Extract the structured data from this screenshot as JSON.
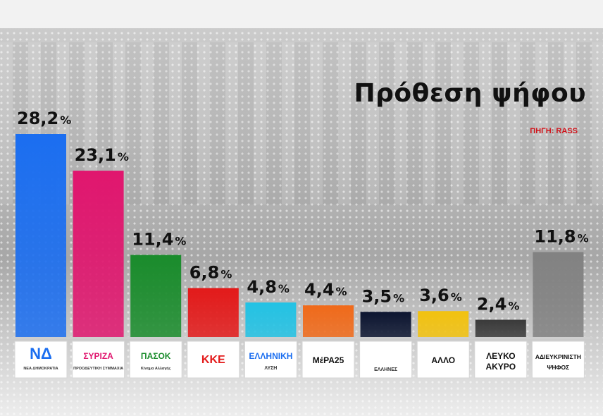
{
  "title": "Πρόθεση ψήφου",
  "source": "ΠΗΓΗ: RASS",
  "chart_data": {
    "type": "bar",
    "categories": [
      "ΝΔ",
      "ΣΥΡΙΖΑ",
      "ΠΑΣΟΚ",
      "ΚΚΕ",
      "ΕΛΛΗΝΙΚΗ ΛΥΣΗ",
      "ΜέΡΑ25",
      "ΕΛΛΗΝΕΣ",
      "ΑΛΛΟ",
      "ΛΕΥΚΟ ΑΚΥΡΟ",
      "ΑΔΙΕΥΚΡΙΝΙΣΤΗ ΨΗΦΟΣ"
    ],
    "values": [
      28.2,
      23.1,
      11.4,
      6.8,
      4.8,
      4.4,
      3.5,
      3.6,
      2.4,
      11.8
    ],
    "value_labels": [
      "28,2",
      "23,1",
      "11,4",
      "6,8",
      "4,8",
      "4,4",
      "3,5",
      "3,6",
      "2,4",
      "11,8"
    ],
    "unit": "%",
    "colors": [
      "#1b6ef0",
      "#e0166e",
      "#1a8c2c",
      "#e31a1a",
      "#22c2e4",
      "#f06a1a",
      "#0c1530",
      "#f2c20f",
      "#3a3a3a",
      "#828282"
    ],
    "ylim": [
      0,
      28.2
    ],
    "grid": false,
    "logos": [
      {
        "icon": "nd-logo",
        "main": "ΝΔ",
        "sub": "ΝΕΑ ΔΗΜΟΚΡΑΤΙΑ",
        "color": "#1b6ef0"
      },
      {
        "icon": "syriza-logo",
        "main": "ΣΥΡΙΖΑ",
        "sub": "ΠΡΟΟΔΕΥΤΙΚΗ ΣΥΜΜΑΧΙΑ",
        "color": "#e0166e"
      },
      {
        "icon": "pasok-logo",
        "main": "ΠΑΣΟΚ",
        "sub": "Κίνημα Αλλαγής",
        "color": "#1a8c2c"
      },
      {
        "icon": "kke-logo",
        "main": "ΚΚΕ",
        "sub": "",
        "color": "#e31a1a"
      },
      {
        "icon": "elliniki-lysi-logo",
        "main": "ΕΛΛΗΝΙΚΗ",
        "sub": "ΛΥΣΗ",
        "color": "#1b6ef0"
      },
      {
        "icon": "mera25-logo",
        "main": "ΜέΡΑ25",
        "sub": "",
        "color": "#111111"
      },
      {
        "icon": "ellines-logo",
        "main": "",
        "sub": "ΕΛΛΗΝΕΣ",
        "color": "#1b5fb5"
      },
      {
        "icon": "allo-text",
        "main": "ΑΛΛΟ",
        "sub": "",
        "color": "#111111"
      },
      {
        "icon": "lefko-akyro-text",
        "main": "ΛΕΥΚΟ",
        "sub": "ΑΚΥΡΟ",
        "color": "#111111"
      },
      {
        "icon": "adiefkrinisti-text",
        "main": "ΑΔΙΕΥΚΡΙΝΙΣΤΗ",
        "sub": "ΨΗΦΟΣ",
        "color": "#111111"
      }
    ]
  }
}
